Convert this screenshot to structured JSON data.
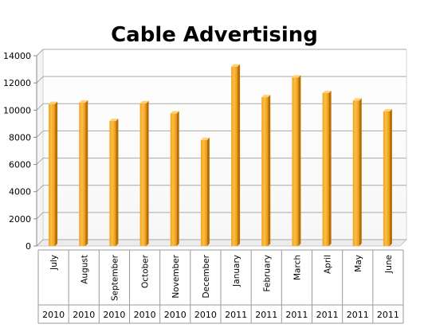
{
  "chart_data": {
    "type": "bar",
    "title": "Cable Advertising",
    "xlabel": "",
    "ylabel": "",
    "ylim": [
      0,
      14000
    ],
    "yticks": [
      0,
      2000,
      4000,
      6000,
      8000,
      10000,
      12000,
      14000
    ],
    "categories": [
      "July",
      "August",
      "September",
      "October",
      "November",
      "December",
      "January",
      "February",
      "March",
      "April",
      "May",
      "June"
    ],
    "years": [
      "2010",
      "2010",
      "2010",
      "2010",
      "2010",
      "2010",
      "2011",
      "2011",
      "2011",
      "2011",
      "2011",
      "2011"
    ],
    "values": [
      10450,
      10550,
      9200,
      10500,
      9750,
      7800,
      13200,
      10950,
      12400,
      11250,
      10700,
      9900
    ],
    "grid": true,
    "legend": "none",
    "bar_color": "#F5A623"
  }
}
